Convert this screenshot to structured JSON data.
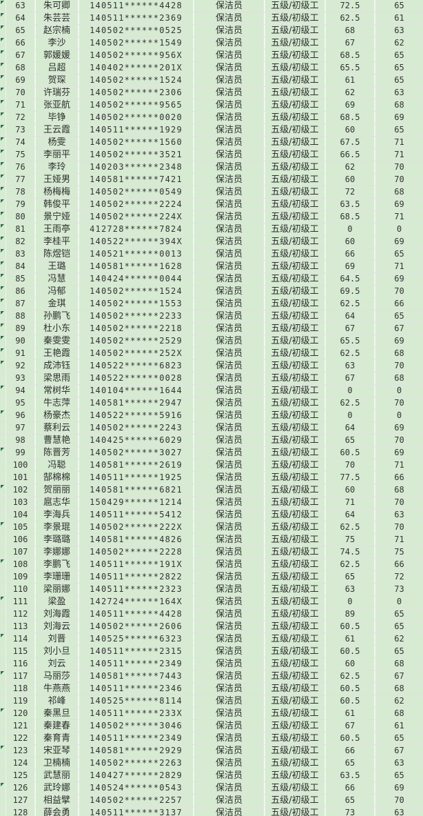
{
  "sheet": {
    "job_title_repeated": "保洁员",
    "level_repeated": "五级/初级工",
    "colors": {
      "cell_background": "#d6ebd2",
      "vertical_gridline": "#f1f6ef",
      "horizontal_gridline": "#dfe3dd",
      "text": "#2f2f2f",
      "error_marker_green": "#1f7246"
    },
    "rows": [
      {
        "num": "63",
        "name": "朱可卿",
        "id": "140511******4428",
        "job": "保洁员",
        "level": "五级/初级工",
        "s1": "72.5",
        "s2": "65",
        "marker": true
      },
      {
        "num": "64",
        "name": "朱芸芸",
        "id": "140511******2369",
        "job": "保洁员",
        "level": "五级/初级工",
        "s1": "62.5",
        "s2": "61",
        "marker": true
      },
      {
        "num": "65",
        "name": "赵宗楠",
        "id": "140502******0525",
        "job": "保洁员",
        "level": "五级/初级工",
        "s1": "68",
        "s2": "63",
        "marker": true
      },
      {
        "num": "66",
        "name": "李沙",
        "id": "140502******1549",
        "job": "保洁员",
        "level": "五级/初级工",
        "s1": "67",
        "s2": "62",
        "marker": true
      },
      {
        "num": "67",
        "name": "郭媛媛",
        "id": "140502******956X",
        "job": "保洁员",
        "level": "五级/初级工",
        "s1": "68.5",
        "s2": "65",
        "marker": true
      },
      {
        "num": "68",
        "name": "吕超",
        "id": "140402******201X",
        "job": "保洁员",
        "level": "五级/初级工",
        "s1": "65.5",
        "s2": "65",
        "marker": true
      },
      {
        "num": "69",
        "name": "贺琛",
        "id": "140502******1524",
        "job": "保洁员",
        "level": "五级/初级工",
        "s1": "61",
        "s2": "65",
        "marker": true
      },
      {
        "num": "70",
        "name": "许瑞芬",
        "id": "140502******2306",
        "job": "保洁员",
        "level": "五级/初级工",
        "s1": "62",
        "s2": "63",
        "marker": true
      },
      {
        "num": "71",
        "name": "张亚航",
        "id": "140502******9565",
        "job": "保洁员",
        "level": "五级/初级工",
        "s1": "69",
        "s2": "68",
        "marker": true
      },
      {
        "num": "72",
        "name": "毕铮",
        "id": "140502******0020",
        "job": "保洁员",
        "level": "五级/初级工",
        "s1": "68.5",
        "s2": "69",
        "marker": true
      },
      {
        "num": "73",
        "name": "王云霞",
        "id": "140511******1929",
        "job": "保洁员",
        "level": "五级/初级工",
        "s1": "60",
        "s2": "65",
        "marker": true
      },
      {
        "num": "74",
        "name": "杨雯",
        "id": "140502******1560",
        "job": "保洁员",
        "level": "五级/初级工",
        "s1": "67.5",
        "s2": "71",
        "marker": true
      },
      {
        "num": "75",
        "name": "李丽平",
        "id": "140502******3521",
        "job": "保洁员",
        "level": "五级/初级工",
        "s1": "66.5",
        "s2": "71",
        "marker": true
      },
      {
        "num": "76",
        "name": "李玲",
        "id": "140203******2348",
        "job": "保洁员",
        "level": "五级/初级工",
        "s1": "62",
        "s2": "70",
        "marker": true
      },
      {
        "num": "77",
        "name": "王娅男",
        "id": "140581******7421",
        "job": "保洁员",
        "level": "五级/初级工",
        "s1": "60",
        "s2": "70",
        "marker": true
      },
      {
        "num": "78",
        "name": "杨梅梅",
        "id": "140502******0549",
        "job": "保洁员",
        "level": "五级/初级工",
        "s1": "72",
        "s2": "68",
        "marker": true
      },
      {
        "num": "79",
        "name": "韩俊平",
        "id": "140502******2224",
        "job": "保洁员",
        "level": "五级/初级工",
        "s1": "63.5",
        "s2": "69",
        "marker": true
      },
      {
        "num": "80",
        "name": "景宁娅",
        "id": "140502******224X",
        "job": "保洁员",
        "level": "五级/初级工",
        "s1": "68.5",
        "s2": "71",
        "marker": true
      },
      {
        "num": "81",
        "name": "王雨亭",
        "id": "412728******7824",
        "job": "保洁员",
        "level": "五级/初级工",
        "s1": "0",
        "s2": "0",
        "marker": true
      },
      {
        "num": "82",
        "name": "李桂平",
        "id": "140522******394X",
        "job": "保洁员",
        "level": "五级/初级工",
        "s1": "60",
        "s2": "69",
        "marker": true
      },
      {
        "num": "83",
        "name": "陈煜铠",
        "id": "140521******0013",
        "job": "保洁员",
        "level": "五级/初级工",
        "s1": "66",
        "s2": "65",
        "marker": true
      },
      {
        "num": "84",
        "name": "王璐",
        "id": "140581******1628",
        "job": "保洁员",
        "level": "五级/初级工",
        "s1": "69",
        "s2": "71",
        "marker": true
      },
      {
        "num": "85",
        "name": "冯慧",
        "id": "140424******0044",
        "job": "保洁员",
        "level": "五级/初级工",
        "s1": "64.5",
        "s2": "69",
        "marker": true
      },
      {
        "num": "86",
        "name": "冯郁",
        "id": "140502******1524",
        "job": "保洁员",
        "level": "五级/初级工",
        "s1": "69.5",
        "s2": "70",
        "marker": true
      },
      {
        "num": "87",
        "name": "金琪",
        "id": "140502******1553",
        "job": "保洁员",
        "level": "五级/初级工",
        "s1": "62.5",
        "s2": "66",
        "marker": true
      },
      {
        "num": "88",
        "name": "孙鹏飞",
        "id": "140502******2233",
        "job": "保洁员",
        "level": "五级/初级工",
        "s1": "64",
        "s2": "65",
        "marker": true
      },
      {
        "num": "89",
        "name": "杜小东",
        "id": "140502******2218",
        "job": "保洁员",
        "level": "五级/初级工",
        "s1": "67",
        "s2": "67",
        "marker": true
      },
      {
        "num": "90",
        "name": "秦雯雯",
        "id": "140502******2529",
        "job": "保洁员",
        "level": "五级/初级工",
        "s1": "65.5",
        "s2": "69",
        "marker": true
      },
      {
        "num": "91",
        "name": "王艳霞",
        "id": "140502******252X",
        "job": "保洁员",
        "level": "五级/初级工",
        "s1": "62.5",
        "s2": "68",
        "marker": true
      },
      {
        "num": "92",
        "name": "成沛钰",
        "id": "140522******6823",
        "job": "保洁员",
        "level": "五级/初级工",
        "s1": "63",
        "s2": "70",
        "marker": true
      },
      {
        "num": "93",
        "name": "梁思雨",
        "id": "140522******0028",
        "job": "保洁员",
        "level": "五级/初级工",
        "s1": "67",
        "s2": "68",
        "marker": false
      },
      {
        "num": "94",
        "name": "常树华",
        "id": "140104******1644",
        "job": "保洁员",
        "level": "五级/初级工",
        "s1": "0",
        "s2": "0",
        "marker": true
      },
      {
        "num": "95",
        "name": "牛志萍",
        "id": "140581******2947",
        "job": "保洁员",
        "level": "五级/初级工",
        "s1": "62.5",
        "s2": "70",
        "marker": false
      },
      {
        "num": "96",
        "name": "杨豪杰",
        "id": "140522******5916",
        "job": "保洁员",
        "level": "五级/初级工",
        "s1": "0",
        "s2": "0",
        "marker": true
      },
      {
        "num": "97",
        "name": "蔡利云",
        "id": "140502******2243",
        "job": "保洁员",
        "level": "五级/初级工",
        "s1": "64",
        "s2": "69",
        "marker": false
      },
      {
        "num": "98",
        "name": "曹慧艳",
        "id": "140425******6029",
        "job": "保洁员",
        "level": "五级/初级工",
        "s1": "65",
        "s2": "70",
        "marker": false
      },
      {
        "num": "99",
        "name": "陈晋芳",
        "id": "140502******3027",
        "job": "保洁员",
        "level": "五级/初级工",
        "s1": "60.5",
        "s2": "69",
        "marker": true
      },
      {
        "num": "100",
        "name": "冯聪",
        "id": "140581******2619",
        "job": "保洁员",
        "level": "五级/初级工",
        "s1": "70",
        "s2": "71",
        "marker": false
      },
      {
        "num": "101",
        "name": "郜棉棉",
        "id": "140511******1925",
        "job": "保洁员",
        "level": "五级/初级工",
        "s1": "77.5",
        "s2": "66",
        "marker": false
      },
      {
        "num": "102",
        "name": "贺丽丽",
        "id": "140581******6821",
        "job": "保洁员",
        "level": "五级/初级工",
        "s1": "60",
        "s2": "68",
        "marker": true
      },
      {
        "num": "103",
        "name": "扈志华",
        "id": "150429******1214",
        "job": "保洁员",
        "level": "五级/初级工",
        "s1": "71",
        "s2": "70",
        "marker": false
      },
      {
        "num": "104",
        "name": "李海兵",
        "id": "140511******5412",
        "job": "保洁员",
        "level": "五级/初级工",
        "s1": "64",
        "s2": "63",
        "marker": false
      },
      {
        "num": "105",
        "name": "李景琨",
        "id": "140502******222X",
        "job": "保洁员",
        "level": "五级/初级工",
        "s1": "62.5",
        "s2": "70",
        "marker": true
      },
      {
        "num": "106",
        "name": "李璐璐",
        "id": "140581******4826",
        "job": "保洁员",
        "level": "五级/初级工",
        "s1": "75",
        "s2": "71",
        "marker": false
      },
      {
        "num": "107",
        "name": "李娜娜",
        "id": "140502******2228",
        "job": "保洁员",
        "level": "五级/初级工",
        "s1": "74.5",
        "s2": "75",
        "marker": false
      },
      {
        "num": "108",
        "name": "李鹏飞",
        "id": "140511******191X",
        "job": "保洁员",
        "level": "五级/初级工",
        "s1": "62.5",
        "s2": "66",
        "marker": true
      },
      {
        "num": "109",
        "name": "李珊珊",
        "id": "140511******2822",
        "job": "保洁员",
        "level": "五级/初级工",
        "s1": "65",
        "s2": "72",
        "marker": false
      },
      {
        "num": "110",
        "name": "梁丽娜",
        "id": "140511******2323",
        "job": "保洁员",
        "level": "五级/初级工",
        "s1": "63",
        "s2": "73",
        "marker": false
      },
      {
        "num": "111",
        "name": "梁盈",
        "id": "142724******164X",
        "job": "保洁员",
        "level": "五级/初级工",
        "s1": "0",
        "s2": "0",
        "marker": true
      },
      {
        "num": "112",
        "name": "刘海霞",
        "id": "140511******4428",
        "job": "保洁员",
        "level": "五级/初级工",
        "s1": "89",
        "s2": "65",
        "marker": false
      },
      {
        "num": "113",
        "name": "刘海云",
        "id": "140502******2606",
        "job": "保洁员",
        "level": "五级/初级工",
        "s1": "60.5",
        "s2": "65",
        "marker": false
      },
      {
        "num": "114",
        "name": "刘晋",
        "id": "140525******6323",
        "job": "保洁员",
        "level": "五级/初级工",
        "s1": "61",
        "s2": "62",
        "marker": true
      },
      {
        "num": "115",
        "name": "刘小旦",
        "id": "140511******2315",
        "job": "保洁员",
        "level": "五级/初级工",
        "s1": "60.5",
        "s2": "65",
        "marker": false
      },
      {
        "num": "116",
        "name": "刘云",
        "id": "140511******2349",
        "job": "保洁员",
        "level": "五级/初级工",
        "s1": "60",
        "s2": "68",
        "marker": false
      },
      {
        "num": "117",
        "name": "马丽莎",
        "id": "140581******7443",
        "job": "保洁员",
        "level": "五级/初级工",
        "s1": "62.5",
        "s2": "67",
        "marker": true
      },
      {
        "num": "118",
        "name": "牛燕燕",
        "id": "140511******2346",
        "job": "保洁员",
        "level": "五级/初级工",
        "s1": "60.5",
        "s2": "68",
        "marker": false
      },
      {
        "num": "119",
        "name": "祁峰",
        "id": "140525******8114",
        "job": "保洁员",
        "level": "五级/初级工",
        "s1": "60.5",
        "s2": "62",
        "marker": false
      },
      {
        "num": "120",
        "name": "秦黑旦",
        "id": "140511******233X",
        "job": "保洁员",
        "level": "五级/初级工",
        "s1": "61",
        "s2": "68",
        "marker": true
      },
      {
        "num": "121",
        "name": "秦建春",
        "id": "140502******3046",
        "job": "保洁员",
        "level": "五级/初级工",
        "s1": "67",
        "s2": "61",
        "marker": false
      },
      {
        "num": "122",
        "name": "秦育青",
        "id": "140511******2349",
        "job": "保洁员",
        "level": "五级/初级工",
        "s1": "60.5",
        "s2": "65",
        "marker": false
      },
      {
        "num": "123",
        "name": "宋亚琴",
        "id": "140581******2929",
        "job": "保洁员",
        "level": "五级/初级工",
        "s1": "66",
        "s2": "67",
        "marker": true
      },
      {
        "num": "124",
        "name": "卫楠楠",
        "id": "140502******2263",
        "job": "保洁员",
        "level": "五级/初级工",
        "s1": "65",
        "s2": "63",
        "marker": false
      },
      {
        "num": "125",
        "name": "武慧丽",
        "id": "140427******2829",
        "job": "保洁员",
        "level": "五级/初级工",
        "s1": "63.5",
        "s2": "65",
        "marker": false
      },
      {
        "num": "126",
        "name": "武玲娜",
        "id": "140524******0543",
        "job": "保洁员",
        "level": "五级/初级工",
        "s1": "66",
        "s2": "69",
        "marker": true
      },
      {
        "num": "127",
        "name": "相益擘",
        "id": "140502******2257",
        "job": "保洁员",
        "level": "五级/初级工",
        "s1": "65",
        "s2": "70",
        "marker": false
      },
      {
        "num": "128",
        "name": "薛会勇",
        "id": "140511******3137",
        "job": "保洁员",
        "level": "五级/初级工",
        "s1": "73",
        "s2": "63",
        "marker": false
      }
    ]
  }
}
